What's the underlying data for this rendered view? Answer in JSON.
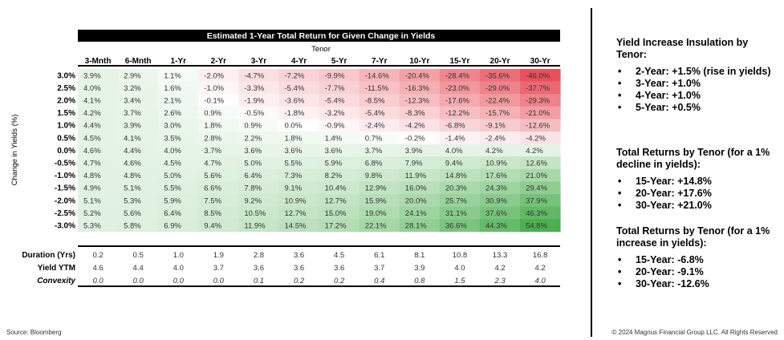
{
  "chart_data": {
    "type": "heatmap",
    "title": "Estimated 1-Year Total Return for Given Change in Yields",
    "column_group_label": "Tenor",
    "ylabel": "Change in Yields (%)",
    "columns": [
      "3-Mnth",
      "6-Mnth",
      "1-Yr",
      "2-Yr",
      "3-Yr",
      "4-Yr",
      "5-Yr",
      "7-Yr",
      "10-Yr",
      "15-Yr",
      "20-Yr",
      "30-Yr"
    ],
    "rows": [
      "3.0%",
      "2.5%",
      "2.0%",
      "1.5%",
      "1.0%",
      "0.5%",
      "0.0%",
      "-0.5%",
      "-1.0%",
      "-1.5%",
      "-2.0%",
      "-2.5%",
      "-3.0%"
    ],
    "cells": [
      [
        "3.9%",
        "2.9%",
        "1.1%",
        "-2.0%",
        "-4.7%",
        "-7.2%",
        "-9.9%",
        "-14.6%",
        "-20.4%",
        "-28.4%",
        "-35.6%",
        "-46.0%"
      ],
      [
        "4.0%",
        "3.2%",
        "1.6%",
        "-1.0%",
        "-3.3%",
        "-5.4%",
        "-7.7%",
        "-11.5%",
        "-16.3%",
        "-23.0%",
        "-29.0%",
        "-37.7%"
      ],
      [
        "4.1%",
        "3.4%",
        "2.1%",
        "-0.1%",
        "-1.9%",
        "-3.6%",
        "-5.4%",
        "-8.5%",
        "-12.3%",
        "-17.6%",
        "-22.4%",
        "-29.3%"
      ],
      [
        "4.2%",
        "3.7%",
        "2.6%",
        "0.9%",
        "-0.5%",
        "-1.8%",
        "-3.2%",
        "-5.4%",
        "-8.3%",
        "-12.2%",
        "-15.7%",
        "-21.0%"
      ],
      [
        "4.4%",
        "3.9%",
        "3.0%",
        "1.8%",
        "0.9%",
        "0.0%",
        "-0.9%",
        "-2.4%",
        "-4.2%",
        "-6.8%",
        "-9.1%",
        "-12.6%"
      ],
      [
        "4.5%",
        "4.1%",
        "3.5%",
        "2.8%",
        "2.2%",
        "1.8%",
        "1.4%",
        "0.7%",
        "-0.2%",
        "-1.4%",
        "-2.4%",
        "-4.2%"
      ],
      [
        "4.6%",
        "4.4%",
        "4.0%",
        "3.7%",
        "3.6%",
        "3.6%",
        "3.6%",
        "3.7%",
        "3.9%",
        "4.0%",
        "4.2%",
        "4.2%"
      ],
      [
        "4.7%",
        "4.6%",
        "4.5%",
        "4.7%",
        "5.0%",
        "5.5%",
        "5.9%",
        "6.8%",
        "7.9%",
        "9.4%",
        "10.9%",
        "12.6%"
      ],
      [
        "4.8%",
        "4.8%",
        "5.0%",
        "5.6%",
        "6.4%",
        "7.3%",
        "8.2%",
        "9.8%",
        "11.9%",
        "14.8%",
        "17.6%",
        "21.0%"
      ],
      [
        "4.9%",
        "5.1%",
        "5.5%",
        "6.6%",
        "7.8%",
        "9.1%",
        "10.4%",
        "12.9%",
        "16.0%",
        "20.3%",
        "24.3%",
        "29.4%"
      ],
      [
        "5.1%",
        "5.3%",
        "5.9%",
        "7.5%",
        "9.2%",
        "10.9%",
        "12.7%",
        "15.9%",
        "20.0%",
        "25.7%",
        "30.9%",
        "37.9%"
      ],
      [
        "5.2%",
        "5.6%",
        "6.4%",
        "8.5%",
        "10.5%",
        "12.7%",
        "15.0%",
        "19.0%",
        "24.1%",
        "31.1%",
        "37.6%",
        "46.3%"
      ],
      [
        "5.3%",
        "5.8%",
        "6.9%",
        "9.4%",
        "11.9%",
        "14.5%",
        "17.2%",
        "22.1%",
        "28.1%",
        "36.6%",
        "44.3%",
        "54.8%"
      ]
    ],
    "stats": [
      {
        "label": "Duration (Yrs)",
        "values": [
          "0.2",
          "0.5",
          "1.0",
          "1.9",
          "2.8",
          "3.6",
          "4.5",
          "6.1",
          "8.1",
          "10.8",
          "13.3",
          "16.8"
        ]
      },
      {
        "label": "Yield YTM",
        "values": [
          "4.6",
          "4.4",
          "4.0",
          "3.7",
          "3.6",
          "3.6",
          "3.6",
          "3.7",
          "3.9",
          "4.0",
          "4.2",
          "4.2"
        ]
      },
      {
        "label": "Convexity",
        "values": [
          "0.0",
          "0.0",
          "0.0",
          "0.0",
          "0.1",
          "0.2",
          "0.2",
          "0.4",
          "0.8",
          "1.5",
          "2.3",
          "4.0"
        ]
      }
    ],
    "color_scale": {
      "negative": "#e8505b",
      "neutral": "#ffffff",
      "positive": "#4caf50"
    }
  },
  "sidebar": {
    "sections": [
      {
        "heading": "Yield Increase Insulation by Tenor:",
        "items": [
          "2-Year: +1.5% (rise in yields)",
          "3-Year: +1.0%",
          "4-Year: +1.0%",
          "5-Year: +0.5%"
        ]
      },
      {
        "heading": "Total Returns by Tenor (for a 1% decline in yields):",
        "items": [
          "15-Year: +14.8%",
          "20-Year: +17.6%",
          "30-Year: +21.0%"
        ]
      },
      {
        "heading": "Total Returns by Tenor (for a 1% increase in yields):",
        "items": [
          "15-Year: -6.8%",
          "20-Year: -9.1%",
          "30-Year: -12.6%"
        ]
      }
    ]
  },
  "footer": {
    "source": "Source: Bloomberg",
    "copyright": "© 2024 Magnus Financial Group LLC. All Rights Reserved"
  }
}
